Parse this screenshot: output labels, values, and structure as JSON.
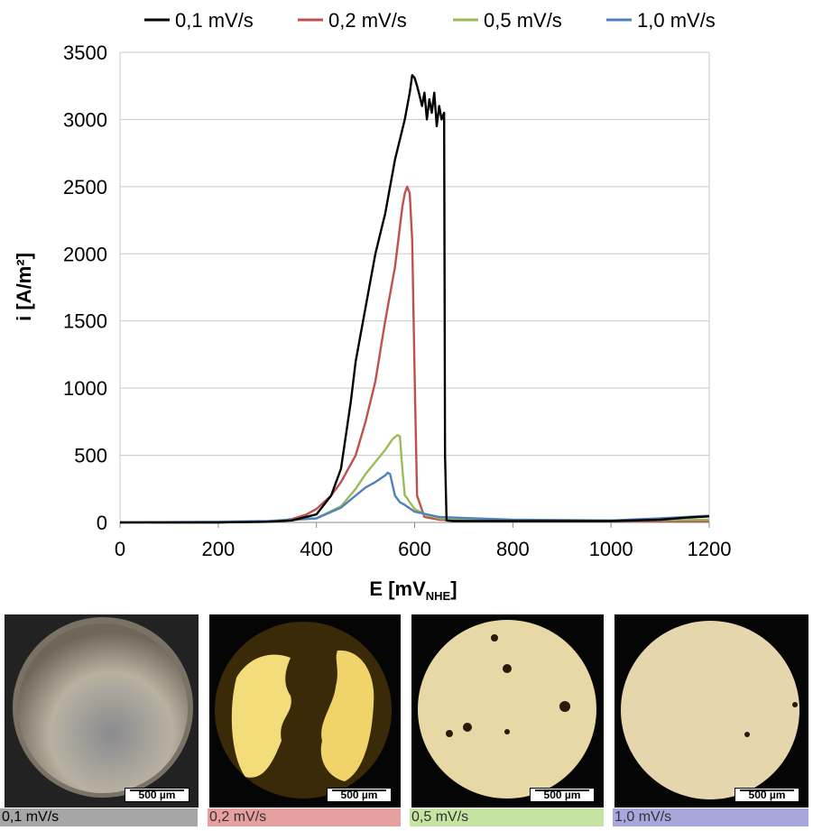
{
  "chart_data": {
    "type": "line",
    "xlabel": "E [mV",
    "xlabel_sub": "NHE",
    "xlabel_end": "]",
    "ylabel": "i [A/m²]",
    "xlim": [
      0,
      1200
    ],
    "ylim": [
      0,
      3500
    ],
    "xticks": [
      0,
      200,
      400,
      600,
      800,
      1000,
      1200
    ],
    "yticks": [
      0,
      500,
      1000,
      1500,
      2000,
      2500,
      3000,
      3500
    ],
    "grid": "horizontal",
    "legend": "top",
    "series": [
      {
        "name": "0,1 mV/s",
        "color": "#000000",
        "x": [
          0,
          100,
          200,
          300,
          350,
          400,
          430,
          450,
          470,
          480,
          500,
          520,
          540,
          560,
          580,
          590,
          595,
          600,
          605,
          610,
          615,
          620,
          625,
          630,
          635,
          640,
          645,
          650,
          655,
          660,
          662,
          665,
          680,
          700,
          800,
          1000,
          1100,
          1150,
          1200
        ],
        "y": [
          0,
          0,
          0,
          5,
          15,
          60,
          200,
          400,
          900,
          1200,
          1600,
          2000,
          2300,
          2700,
          3000,
          3200,
          3330,
          3310,
          3250,
          3180,
          3100,
          3200,
          3000,
          3150,
          3050,
          3200,
          2950,
          3100,
          3000,
          3050,
          500,
          15,
          10,
          10,
          10,
          10,
          20,
          35,
          45
        ]
      },
      {
        "name": "0,2 mV/s",
        "color": "#c0504d",
        "x": [
          60,
          200,
          300,
          330,
          350,
          380,
          400,
          430,
          450,
          480,
          500,
          520,
          540,
          560,
          570,
          575,
          580,
          585,
          590,
          595,
          600,
          605,
          620,
          650,
          700,
          800,
          1000,
          1200
        ],
        "y": [
          0,
          0,
          5,
          15,
          25,
          60,
          100,
          200,
          300,
          500,
          750,
          1050,
          1500,
          1900,
          2200,
          2350,
          2450,
          2500,
          2450,
          2100,
          1100,
          200,
          40,
          20,
          15,
          10,
          10,
          10
        ]
      },
      {
        "name": "0,5 mV/s",
        "color": "#9bbb59",
        "x": [
          100,
          200,
          300,
          400,
          450,
          480,
          500,
          520,
          540,
          555,
          565,
          570,
          575,
          580,
          585,
          590,
          600,
          620,
          650,
          800,
          1000,
          1200
        ],
        "y": [
          0,
          0,
          5,
          30,
          120,
          250,
          360,
          450,
          540,
          620,
          650,
          640,
          400,
          200,
          180,
          150,
          100,
          60,
          30,
          15,
          15,
          20
        ]
      },
      {
        "name": "1,0 mV/s",
        "color": "#4f81bd",
        "x": [
          0,
          200,
          300,
          400,
          450,
          480,
          500,
          520,
          540,
          545,
          550,
          555,
          560,
          570,
          580,
          600,
          650,
          800,
          1000,
          1100,
          1200
        ],
        "y": [
          0,
          5,
          10,
          30,
          110,
          200,
          260,
          300,
          350,
          370,
          360,
          280,
          200,
          150,
          130,
          80,
          40,
          20,
          15,
          30,
          50
        ]
      }
    ]
  },
  "photos": [
    {
      "caption": "0,1 mV/s",
      "scale": "500 µm",
      "caption_bg": "#a6a6a6"
    },
    {
      "caption": "0,2 mV/s",
      "scale": "500 µm",
      "caption_bg": "#e6a0a0"
    },
    {
      "caption": "0,5 mV/s",
      "scale": "500 µm",
      "caption_bg": "#c7e3a3"
    },
    {
      "caption": "1,0 mV/s",
      "scale": "500 µm",
      "caption_bg": "#a7a7dc"
    }
  ]
}
